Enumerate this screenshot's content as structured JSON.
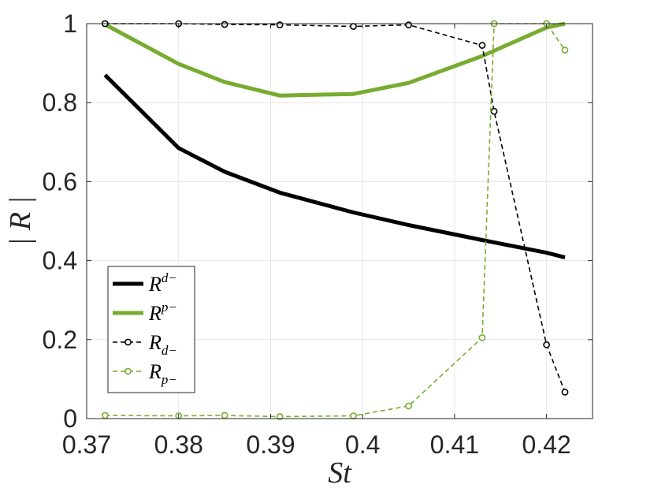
{
  "chart_data": {
    "type": "line",
    "xlabel": "St",
    "ylabel": "| R |",
    "xlim": [
      0.37,
      0.425
    ],
    "ylim": [
      0,
      1
    ],
    "xticks": [
      0.37,
      0.38,
      0.39,
      0.4,
      0.41,
      0.42
    ],
    "xtick_labels": [
      "0.37",
      "0.38",
      "0.39",
      "0.4",
      "0.41",
      "0.42"
    ],
    "yticks": [
      0,
      0.2,
      0.4,
      0.6,
      0.8,
      1
    ],
    "ytick_labels": [
      "0",
      "0.2",
      "0.4",
      "0.6",
      "0.8",
      "1"
    ],
    "grid": true,
    "legend_position": "bottom-left",
    "series": [
      {
        "name": "R^{d-}",
        "label_base": "R",
        "label_script": "d−",
        "script_type": "sup",
        "style": "solid",
        "color": "#000000",
        "marker": "none",
        "x": [
          0.372,
          0.38,
          0.385,
          0.391,
          0.399,
          0.405,
          0.413,
          0.42,
          0.422
        ],
        "y": [
          0.87,
          0.685,
          0.625,
          0.572,
          0.522,
          0.49,
          0.452,
          0.42,
          0.408
        ]
      },
      {
        "name": "R^{p-}",
        "label_base": "R",
        "label_script": "p−",
        "script_type": "sup",
        "style": "solid",
        "color": "#77AC30",
        "marker": "none",
        "x": [
          0.372,
          0.38,
          0.385,
          0.391,
          0.399,
          0.405,
          0.413,
          0.42,
          0.422
        ],
        "y": [
          0.998,
          0.898,
          0.852,
          0.818,
          0.822,
          0.85,
          0.918,
          0.99,
          1.0
        ]
      },
      {
        "name": "R_{d-}",
        "label_base": "R",
        "label_script": "d−",
        "script_type": "sub",
        "style": "dashed",
        "color": "#000000",
        "marker": "circle",
        "x": [
          0.372,
          0.38,
          0.385,
          0.391,
          0.399,
          0.405,
          0.413,
          0.4143,
          0.42,
          0.422
        ],
        "y": [
          1.0,
          1.0,
          0.998,
          0.997,
          0.993,
          0.997,
          0.945,
          0.778,
          0.187,
          0.067
        ]
      },
      {
        "name": "R_{p-}",
        "label_base": "R",
        "label_script": "p−",
        "script_type": "sub",
        "style": "dashed",
        "color": "#77AC30",
        "marker": "circle",
        "x": [
          0.372,
          0.38,
          0.385,
          0.391,
          0.399,
          0.405,
          0.413,
          0.4143,
          0.42,
          0.422
        ],
        "y": [
          0.008,
          0.007,
          0.008,
          0.005,
          0.007,
          0.032,
          0.205,
          1.0,
          1.0,
          0.933
        ]
      }
    ]
  }
}
